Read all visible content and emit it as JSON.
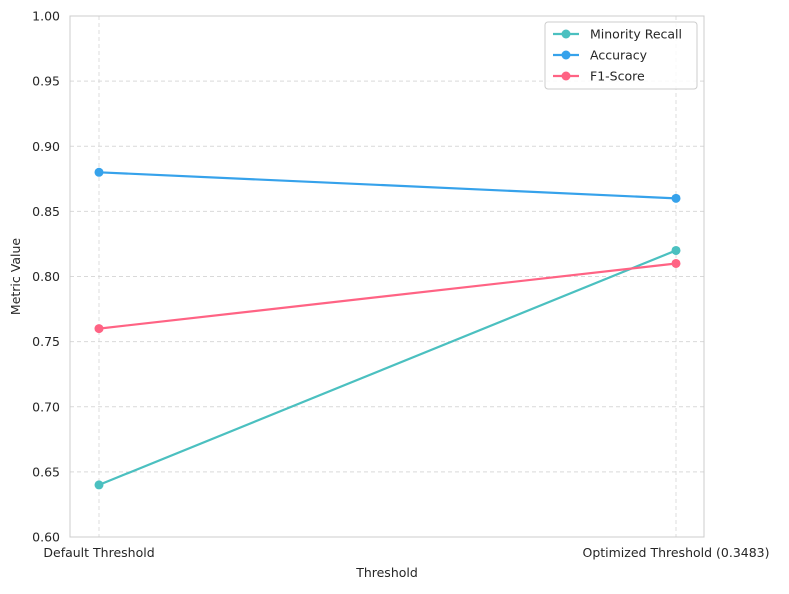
{
  "chart_data": {
    "type": "line",
    "title": "",
    "xlabel": "Threshold",
    "ylabel": "Metric Value",
    "categories": [
      "Default Threshold",
      "Optimized Threshold (0.3483)"
    ],
    "ylim": [
      0.6,
      1.0
    ],
    "yticks": [
      "0.60",
      "0.65",
      "0.70",
      "0.75",
      "0.80",
      "0.85",
      "0.90",
      "0.95",
      "1.00"
    ],
    "grid": true,
    "legend_position": "top-right",
    "series": [
      {
        "name": "Minority Recall",
        "values": [
          0.64,
          0.82
        ],
        "color": "#4bc0c0"
      },
      {
        "name": "Accuracy",
        "values": [
          0.88,
          0.86
        ],
        "color": "#36a2eb"
      },
      {
        "name": "F1-Score",
        "values": [
          0.76,
          0.81
        ],
        "color": "#ff6384"
      }
    ]
  }
}
